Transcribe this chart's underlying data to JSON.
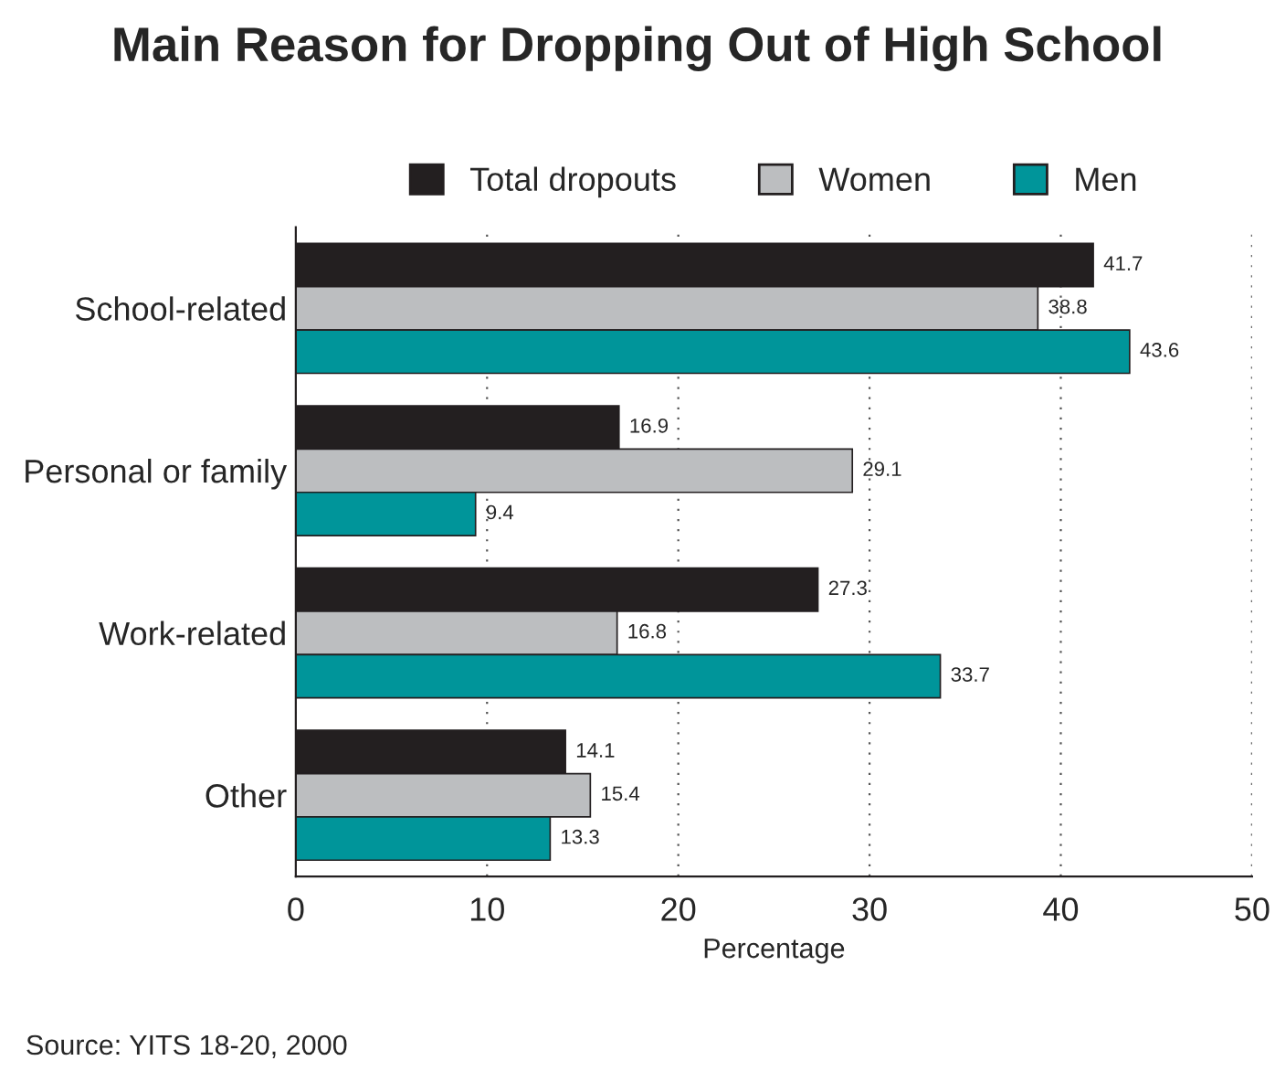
{
  "chart_data": {
    "type": "bar",
    "orientation": "horizontal",
    "title": "Main Reason for Dropping Out of High School",
    "categories": [
      "School-related",
      "Personal or family",
      "Work-related",
      "Other"
    ],
    "series": [
      {
        "name": "Total dropouts",
        "color": "#231f20",
        "values": [
          41.7,
          16.9,
          27.3,
          14.1
        ]
      },
      {
        "name": "Women",
        "color": "#bcbec0",
        "values": [
          38.8,
          29.1,
          16.8,
          15.4
        ]
      },
      {
        "name": "Men",
        "color": "#00959a",
        "values": [
          43.6,
          9.4,
          33.7,
          13.3
        ]
      }
    ],
    "xlabel": "Percentage",
    "xlim": [
      0,
      50
    ],
    "xticks": [
      0,
      10,
      20,
      30,
      40,
      50
    ],
    "grid": "x",
    "legend": "top",
    "data_labels": true,
    "annotations": [
      "Source: YITS 18-20, 2000"
    ]
  }
}
